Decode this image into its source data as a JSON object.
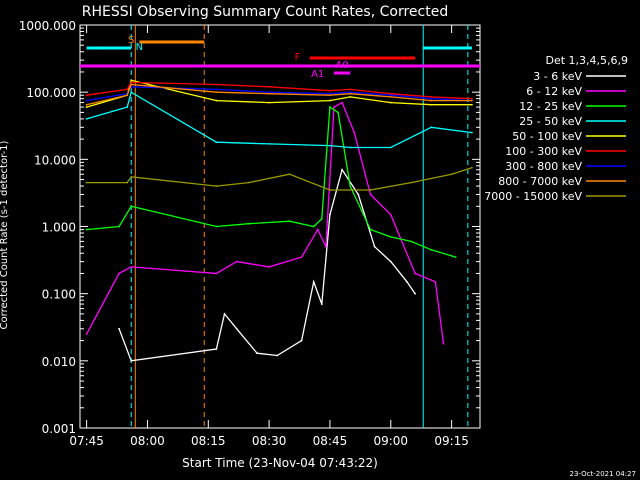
{
  "chart_data": {
    "type": "line",
    "title": "RHESSI Observing Summary Count Rates, Corrected",
    "xlabel": "Start Time (23-Nov-04 07:43:22)",
    "ylabel": "Corrected Count Rate (s-1 detector-1)",
    "yscale": "log",
    "ylim": [
      0.001,
      1000
    ],
    "xlim_minutes": [
      "07:43:22",
      "09:22:00"
    ],
    "x_tick_labels": [
      "07:45",
      "08:00",
      "08:15",
      "08:30",
      "08:45",
      "09:00",
      "09:15"
    ],
    "y_tick_labels": [
      "1000.000",
      "100.000",
      "10.000",
      "1.000",
      "0.100",
      "0.010",
      "0.001"
    ],
    "legend_title": "Det 1,3,4,5,6,9",
    "legend_placement": "right",
    "date_stamp": "23-Oct-2021 04:27",
    "annotations": [
      {
        "label": "S",
        "color": "#ff8800"
      },
      {
        "label": "N",
        "color": "#00ffff"
      },
      {
        "label": "F",
        "color": "#ff0000"
      },
      {
        "label": "A1",
        "color": "#ff00ff"
      },
      {
        "label": "A0",
        "color": "#ff00ff"
      }
    ],
    "series": [
      {
        "name": "3 - 6 keV",
        "color": "#ffffff",
        "x": [
          "07:45",
          "07:53",
          "07:56",
          "08:17",
          "08:19",
          "08:22",
          "08:27",
          "08:32",
          "08:38",
          "08:41",
          "08:43",
          "08:45",
          "08:48",
          "08:52",
          "08:56",
          "09:00",
          "09:04",
          "09:06"
        ],
        "y": [
          null,
          0.03,
          0.01,
          0.015,
          0.05,
          0.03,
          0.013,
          0.012,
          0.02,
          0.15,
          0.07,
          1.5,
          7,
          3,
          0.5,
          0.3,
          0.15,
          0.1
        ]
      },
      {
        "name": "6 - 12 keV",
        "color": "#ff00ff",
        "x": [
          "07:45",
          "07:53",
          "07:56",
          "08:17",
          "08:22",
          "08:30",
          "08:38",
          "08:42",
          "08:44",
          "08:46",
          "08:48",
          "08:51",
          "08:55",
          "09:00",
          "09:06",
          "09:11",
          "09:13"
        ],
        "y": [
          0.025,
          0.2,
          0.25,
          0.2,
          0.3,
          0.25,
          0.35,
          0.9,
          0.5,
          60,
          70,
          25,
          3,
          1.5,
          0.2,
          0.15,
          0.018
        ]
      },
      {
        "name": "12 - 25 keV",
        "color": "#00ff00",
        "x": [
          "07:45",
          "07:53",
          "07:56",
          "08:17",
          "08:25",
          "08:35",
          "08:41",
          "08:43",
          "08:45",
          "08:47",
          "08:50",
          "08:55",
          "09:00",
          "09:05",
          "09:10",
          "09:16"
        ],
        "y": [
          0.9,
          1.0,
          2.0,
          1.0,
          1.1,
          1.2,
          1.0,
          1.3,
          60,
          50,
          4,
          0.9,
          0.7,
          0.6,
          0.45,
          0.35
        ]
      },
      {
        "name": "25 - 50 keV",
        "color": "#00ffff",
        "x": [
          "07:45",
          "07:55",
          "07:56",
          "08:17",
          "08:30",
          "08:45",
          "08:50",
          "09:00",
          "09:10",
          "09:20"
        ],
        "y": [
          40,
          60,
          100,
          18,
          17,
          16,
          15,
          15,
          30,
          25
        ]
      },
      {
        "name": "50 - 100 keV",
        "color": "#ffff00",
        "x": [
          "07:45",
          "07:55",
          "07:56",
          "08:17",
          "08:30",
          "08:45",
          "08:50",
          "09:00",
          "09:10",
          "09:20"
        ],
        "y": [
          60,
          90,
          150,
          75,
          70,
          75,
          85,
          70,
          65,
          65
        ]
      },
      {
        "name": "100 - 300 keV",
        "color": "#ff0000",
        "x": [
          "07:45",
          "07:55",
          "07:56",
          "08:17",
          "08:30",
          "08:45",
          "08:50",
          "09:00",
          "09:10",
          "09:20"
        ],
        "y": [
          90,
          110,
          140,
          130,
          120,
          105,
          110,
          95,
          85,
          80
        ]
      },
      {
        "name": "300 - 800 keV",
        "color": "#0000ff",
        "x": [
          "07:45",
          "07:55",
          "07:56",
          "08:17",
          "08:30",
          "08:45",
          "08:50",
          "09:00",
          "09:10",
          "09:20"
        ],
        "y": [
          75,
          95,
          120,
          110,
          100,
          95,
          100,
          90,
          80,
          75
        ]
      },
      {
        "name": "800 - 7000 keV",
        "color": "#ff8800",
        "x": [
          "07:45",
          "07:55",
          "07:56",
          "08:17",
          "08:30",
          "08:45",
          "08:50",
          "09:00",
          "09:10",
          "09:20"
        ],
        "y": [
          65,
          90,
          130,
          100,
          95,
          90,
          95,
          85,
          75,
          75
        ]
      },
      {
        "name": "7000 - 15000 keV",
        "color": "#999900",
        "x": [
          "07:45",
          "07:55",
          "07:56",
          "08:17",
          "08:25",
          "08:35",
          "08:45",
          "08:55",
          "09:05",
          "09:15",
          "09:20"
        ],
        "y": [
          4.5,
          4.5,
          5.5,
          4.0,
          4.5,
          6.0,
          3.5,
          3.5,
          4.5,
          6.0,
          7.5
        ]
      }
    ]
  }
}
